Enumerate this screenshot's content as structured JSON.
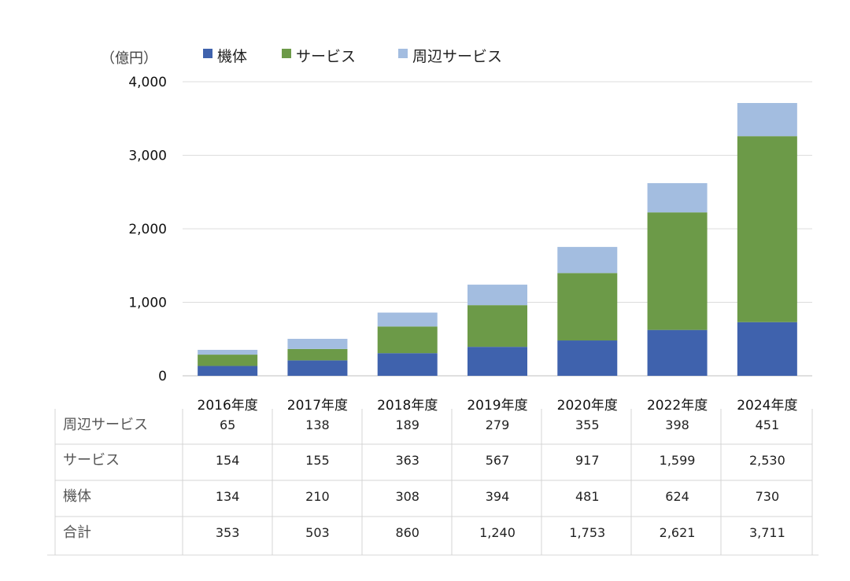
{
  "chart_data": {
    "type": "bar",
    "stacked": true,
    "unit_label": "（億円）",
    "categories": [
      "2016年度",
      "2017年度",
      "2018年度",
      "2019年度",
      "2020年度",
      "2022年度",
      "2024年度"
    ],
    "series": [
      {
        "name": "機体",
        "color": "#3f62ad",
        "values": [
          134,
          210,
          308,
          394,
          481,
          624,
          730
        ]
      },
      {
        "name": "サービス",
        "color": "#6c9a48",
        "values": [
          154,
          155,
          363,
          567,
          917,
          1599,
          2530
        ]
      },
      {
        "name": "周辺サービス",
        "color": "#a3bde0",
        "values": [
          65,
          138,
          189,
          279,
          355,
          398,
          451
        ]
      }
    ],
    "ylim": [
      0,
      4000
    ],
    "yticks": [
      "0",
      "1,000",
      "2,000",
      "3,000",
      "4,000"
    ],
    "grid": true,
    "legend_position": "top"
  },
  "table": {
    "rows": [
      {
        "label": "周辺サービス",
        "cells": [
          "65",
          "138",
          "189",
          "279",
          "355",
          "398",
          "451"
        ]
      },
      {
        "label": "サービス",
        "cells": [
          "154",
          "155",
          "363",
          "567",
          "917",
          "1,599",
          "2,530"
        ]
      },
      {
        "label": "機体",
        "cells": [
          "134",
          "210",
          "308",
          "394",
          "481",
          "624",
          "730"
        ]
      },
      {
        "label": "合計",
        "cells": [
          "353",
          "503",
          "860",
          "1,240",
          "1,753",
          "2,621",
          "3,711"
        ]
      }
    ]
  }
}
